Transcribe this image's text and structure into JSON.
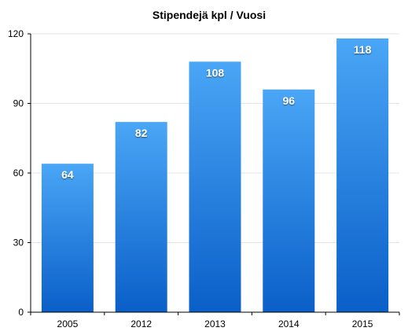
{
  "chart_data": {
    "type": "bar",
    "title": "Stipendejä kpl / Vuosi",
    "xlabel": "",
    "ylabel": "",
    "categories": [
      "2005",
      "2012",
      "2013",
      "2014",
      "2015"
    ],
    "values": [
      64,
      82,
      108,
      96,
      118
    ],
    "data_labels": [
      "64",
      "82",
      "108",
      "96",
      "118"
    ],
    "ylim": [
      0,
      120
    ],
    "yticks": [
      0,
      30,
      60,
      90,
      120
    ],
    "ytick_labels": [
      "0",
      "30",
      "60",
      "90",
      "120"
    ],
    "grid": true,
    "legend": "none",
    "colors": {
      "bar_top": "#4aa6f6",
      "bar_bottom": "#0a5fc8",
      "grid": "#e4e4e4",
      "axis": "#000000",
      "label": "#ffffff"
    }
  }
}
